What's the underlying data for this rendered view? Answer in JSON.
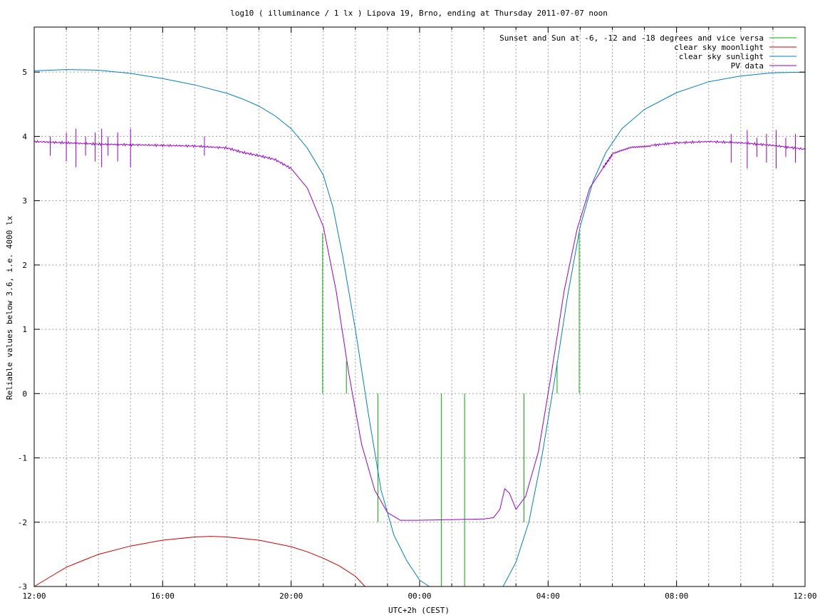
{
  "chart_data": {
    "type": "line",
    "title": "log10 ( illuminance / 1 lx ) Lipova 19, Brno, ending at Thursday 2011-07-07 noon",
    "xlabel": "UTC+2h (CEST)",
    "ylabel": "Reliable values below 3.6, i.e. 4000 lx",
    "xlim_hours": [
      12,
      36
    ],
    "ylim": [
      -3,
      5.7
    ],
    "x_ticks": [
      "12:00",
      "16:00",
      "20:00",
      "00:00",
      "04:00",
      "08:00",
      "12:00"
    ],
    "x_tick_hours": [
      12,
      16,
      20,
      24,
      28,
      32,
      36
    ],
    "y_ticks": [
      "-3",
      "-2",
      "-1",
      "0",
      "1",
      "2",
      "3",
      "4",
      "5"
    ],
    "y_tick_values": [
      -3,
      -2,
      -1,
      0,
      1,
      2,
      3,
      4,
      5
    ],
    "grid": true,
    "legend_position": "top-right",
    "colors": {
      "sun_events": "#00b000",
      "moonlight": "#cc0000",
      "sunlight": "#0080c0",
      "pv": "#9900cc"
    },
    "series": [
      {
        "name": "Sunset and Sun at -6, -12 and -18 degrees and vice versa",
        "kind": "vlines",
        "events": [
          {
            "hour": 20.98,
            "top": 2.5
          },
          {
            "hour": 21.72,
            "top": 0.5
          },
          {
            "hour": 22.7,
            "top": -2.0
          },
          {
            "hour": 24.68,
            "top": -3
          },
          {
            "hour": 25.4,
            "top": -3
          },
          {
            "hour": 27.25,
            "top": -2.0
          },
          {
            "hour": 28.28,
            "top": 0.5
          },
          {
            "hour": 28.97,
            "top": 2.5
          }
        ]
      },
      {
        "name": "clear sky moonlight",
        "kind": "line",
        "points": [
          [
            12.0,
            -3.0
          ],
          [
            12.5,
            -2.85
          ],
          [
            13.0,
            -2.7
          ],
          [
            13.5,
            -2.6
          ],
          [
            14.0,
            -2.5
          ],
          [
            15.0,
            -2.37
          ],
          [
            16.0,
            -2.28
          ],
          [
            17.0,
            -2.23
          ],
          [
            17.5,
            -2.22
          ],
          [
            18.0,
            -2.23
          ],
          [
            19.0,
            -2.28
          ],
          [
            20.0,
            -2.38
          ],
          [
            20.5,
            -2.46
          ],
          [
            21.0,
            -2.56
          ],
          [
            21.5,
            -2.68
          ],
          [
            22.0,
            -2.84
          ],
          [
            22.3,
            -3.0
          ]
        ]
      },
      {
        "name": "clear sky sunlight",
        "kind": "line",
        "points": [
          [
            12.0,
            5.02
          ],
          [
            13.0,
            5.04
          ],
          [
            14.0,
            5.03
          ],
          [
            15.0,
            4.98
          ],
          [
            16.0,
            4.9
          ],
          [
            17.0,
            4.8
          ],
          [
            18.0,
            4.67
          ],
          [
            18.5,
            4.58
          ],
          [
            19.0,
            4.47
          ],
          [
            19.5,
            4.32
          ],
          [
            20.0,
            4.12
          ],
          [
            20.5,
            3.82
          ],
          [
            21.0,
            3.4
          ],
          [
            21.3,
            2.9
          ],
          [
            21.6,
            2.15
          ],
          [
            22.0,
            1.0
          ],
          [
            22.4,
            -0.3
          ],
          [
            22.8,
            -1.5
          ],
          [
            23.2,
            -2.2
          ],
          [
            23.6,
            -2.6
          ],
          [
            24.0,
            -2.9
          ],
          [
            24.3,
            -3.0
          ],
          [
            25.0,
            -3.05
          ],
          [
            26.0,
            -3.05
          ],
          [
            26.6,
            -3.0
          ],
          [
            27.0,
            -2.62
          ],
          [
            27.4,
            -2.0
          ],
          [
            27.8,
            -1.0
          ],
          [
            28.2,
            0.2
          ],
          [
            28.6,
            1.5
          ],
          [
            29.0,
            2.6
          ],
          [
            29.4,
            3.3
          ],
          [
            29.8,
            3.75
          ],
          [
            30.3,
            4.12
          ],
          [
            31.0,
            4.42
          ],
          [
            32.0,
            4.68
          ],
          [
            33.0,
            4.85
          ],
          [
            34.0,
            4.94
          ],
          [
            35.0,
            4.99
          ],
          [
            36.0,
            5.0
          ]
        ]
      },
      {
        "name": "PV data",
        "kind": "line",
        "points": [
          [
            12.0,
            3.92
          ],
          [
            13.0,
            3.9
          ],
          [
            14.0,
            3.88
          ],
          [
            15.0,
            3.87
          ],
          [
            16.0,
            3.86
          ],
          [
            17.0,
            3.85
          ],
          [
            18.0,
            3.82
          ],
          [
            18.5,
            3.75
          ],
          [
            19.0,
            3.7
          ],
          [
            19.5,
            3.64
          ],
          [
            20.0,
            3.5
          ],
          [
            20.5,
            3.2
          ],
          [
            21.0,
            2.6
          ],
          [
            21.4,
            1.6
          ],
          [
            21.8,
            0.3
          ],
          [
            22.2,
            -0.8
          ],
          [
            22.6,
            -1.5
          ],
          [
            23.0,
            -1.85
          ],
          [
            23.4,
            -1.97
          ],
          [
            24.0,
            -1.97
          ],
          [
            25.0,
            -1.96
          ],
          [
            26.0,
            -1.95
          ],
          [
            26.3,
            -1.93
          ],
          [
            26.5,
            -1.8
          ],
          [
            26.65,
            -1.48
          ],
          [
            26.8,
            -1.55
          ],
          [
            27.0,
            -1.8
          ],
          [
            27.3,
            -1.6
          ],
          [
            27.7,
            -0.9
          ],
          [
            28.1,
            0.3
          ],
          [
            28.5,
            1.6
          ],
          [
            28.9,
            2.55
          ],
          [
            29.3,
            3.2
          ],
          [
            29.7,
            3.5
          ],
          [
            30.0,
            3.72
          ],
          [
            30.6,
            3.83
          ],
          [
            31.2,
            3.86
          ],
          [
            32.0,
            3.9
          ],
          [
            33.0,
            3.92
          ],
          [
            34.0,
            3.9
          ],
          [
            35.0,
            3.86
          ],
          [
            36.0,
            3.8
          ]
        ]
      }
    ]
  }
}
